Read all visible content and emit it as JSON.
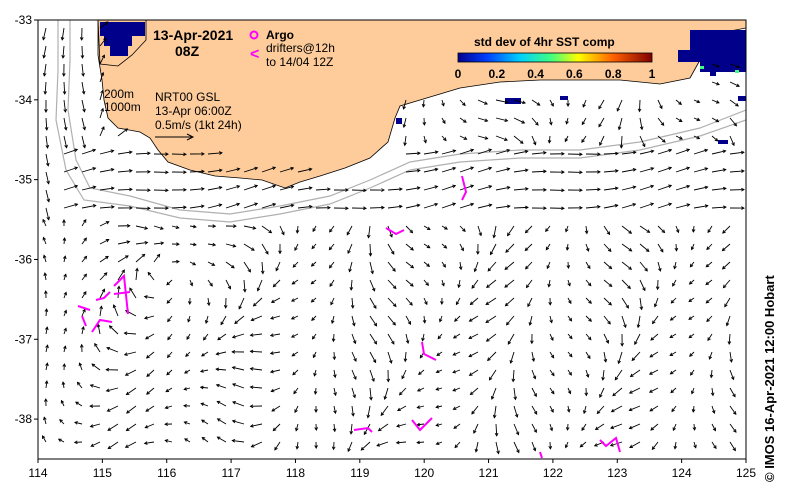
{
  "map": {
    "date": "13-Apr-2021",
    "hour": "08Z",
    "legend": {
      "argo": "Argo",
      "drifters_line1": "drifters@12h",
      "drifters_line2": "to 14/04 12Z",
      "drifter_symbol": "<"
    },
    "depth_labels": [
      "200m",
      "1000m"
    ],
    "product": "NRT00 GSL",
    "product_time": "13-Apr 06:00Z",
    "vector_scale": "0.5m/s (1kt 24h)",
    "colorbar": {
      "title": "std dev of 4hr SST comp",
      "ticks": [
        "0",
        "0.2",
        "0.4",
        "0.6",
        "0.8",
        "1"
      ],
      "range": [
        0,
        1
      ]
    },
    "x_ticks": [
      "114",
      "115",
      "116",
      "117",
      "118",
      "119",
      "120",
      "121",
      "122",
      "123",
      "124",
      "125"
    ],
    "y_ticks": [
      "-33",
      "-34",
      "-35",
      "-36",
      "-37",
      "-38"
    ],
    "lon_range": [
      114,
      125
    ],
    "lat_range": [
      -38.5,
      -33
    ],
    "credit": "© IMOS 16-Apr-2021 12:00 Hobart",
    "colors": {
      "land": "#fecc9b",
      "drifter": "#ff00ff",
      "isobath": "#b0b0b0",
      "sst_high_stddev": "#00008b"
    }
  }
}
